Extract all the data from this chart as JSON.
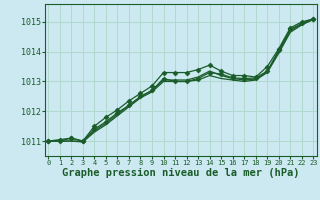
{
  "background_color": "#cce8f0",
  "grid_color": "#b0d8cc",
  "line_color": "#1a5c2a",
  "xlabel": "Graphe pression niveau de la mer (hPa)",
  "xlabel_fontsize": 7.5,
  "yticks": [
    1011,
    1012,
    1013,
    1014,
    1015
  ],
  "xticks": [
    0,
    1,
    2,
    3,
    4,
    5,
    6,
    7,
    8,
    9,
    10,
    11,
    12,
    13,
    14,
    15,
    16,
    17,
    18,
    19,
    20,
    21,
    22,
    23
  ],
  "xlim": [
    -0.3,
    23.3
  ],
  "ylim": [
    1010.5,
    1015.6
  ],
  "series": [
    {
      "y": [
        1011.0,
        1011.0,
        1011.1,
        1011.0,
        1011.5,
        1011.8,
        1012.05,
        1012.35,
        1012.6,
        1012.85,
        1013.3,
        1013.3,
        1013.3,
        1013.4,
        1013.55,
        1013.35,
        1013.2,
        1013.2,
        1013.15,
        1013.5,
        1014.1,
        1014.8,
        1015.0,
        1015.1
      ],
      "marker": "D",
      "markersize": 2.5,
      "lw": 0.9
    },
    {
      "y": [
        1011.0,
        1011.05,
        1011.1,
        1011.0,
        1011.4,
        1011.65,
        1011.95,
        1012.2,
        1012.5,
        1012.7,
        1013.1,
        1013.0,
        1013.0,
        1013.1,
        1013.3,
        1013.25,
        1013.12,
        1013.1,
        1013.12,
        1013.35,
        1014.05,
        1014.75,
        1014.95,
        1015.1
      ],
      "marker": "D",
      "markersize": 2.5,
      "lw": 0.9
    },
    {
      "y": [
        1011.0,
        1011.0,
        1011.0,
        1010.97,
        1011.3,
        1011.55,
        1011.85,
        1012.15,
        1012.45,
        1012.65,
        1013.0,
        1013.0,
        1013.0,
        1013.05,
        1013.2,
        1013.1,
        1013.05,
        1013.0,
        1013.05,
        1013.3,
        1013.95,
        1014.65,
        1014.9,
        1015.08
      ],
      "marker": null,
      "markersize": 0,
      "lw": 0.9
    },
    {
      "y": [
        1011.0,
        1011.0,
        1011.0,
        1011.0,
        1011.35,
        1011.6,
        1011.9,
        1012.2,
        1012.48,
        1012.7,
        1013.05,
        1013.05,
        1013.05,
        1013.15,
        1013.35,
        1013.2,
        1013.1,
        1013.05,
        1013.08,
        1013.32,
        1014.0,
        1014.7,
        1014.93,
        1015.09
      ],
      "marker": null,
      "markersize": 0,
      "lw": 0.9
    }
  ]
}
